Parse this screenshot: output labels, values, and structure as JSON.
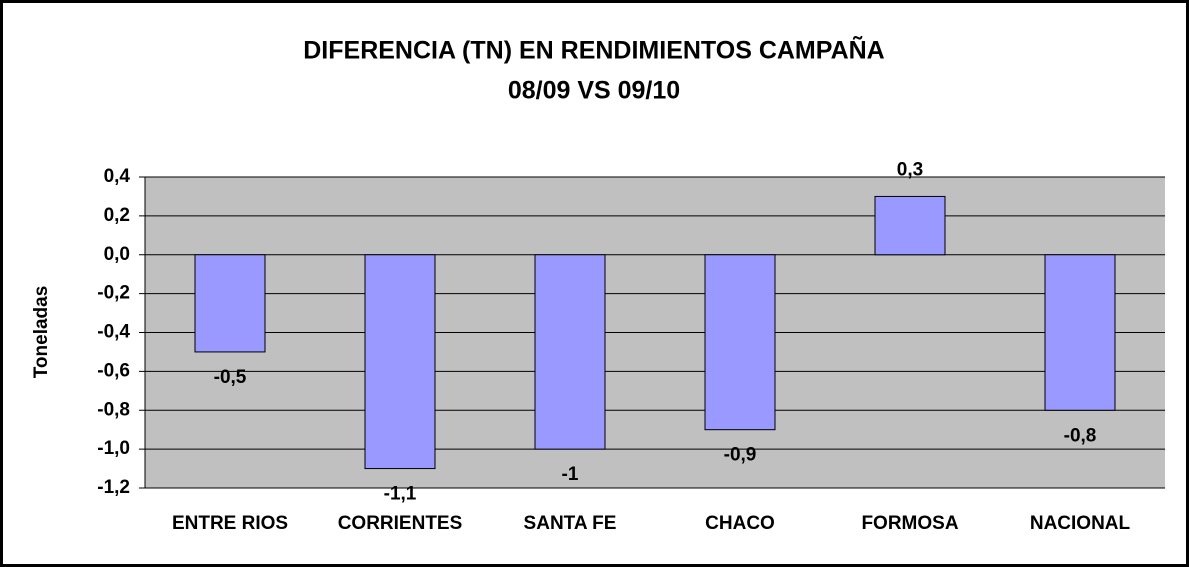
{
  "chart_data": {
    "type": "bar",
    "title": [
      "DIFERENCIA (TN) EN RENDIMIENTOS CAMPAÑA",
      "08/09 VS 09/10"
    ],
    "y_label": "Toneladas",
    "categories": [
      "ENTRE RIOS",
      "CORRIENTES",
      "SANTA FE",
      "CHACO",
      "FORMOSA",
      "NACIONAL"
    ],
    "values": [
      -0.5,
      -1.1,
      -1,
      -0.9,
      0.3,
      -0.8
    ],
    "value_labels": [
      "-0,5",
      "-1,1",
      "-1",
      "-0,9",
      "0,3",
      "-0,8"
    ],
    "color": "#9999ff",
    "ylim": [
      -1.2,
      0.4
    ],
    "yticks": [
      {
        "value": 0.4,
        "label": "0,4"
      },
      {
        "value": 0.2,
        "label": "0,2"
      },
      {
        "value": 0,
        "label": "0,0"
      },
      {
        "value": -0.2,
        "label": "-0,2"
      },
      {
        "value": -0.4,
        "label": "-0,4"
      },
      {
        "value": -0.6,
        "label": "-0,6"
      },
      {
        "value": -0.8,
        "label": "-0,8"
      },
      {
        "value": -1,
        "label": "-1,0"
      },
      {
        "value": -1.2,
        "label": "-1,2"
      }
    ],
    "grid": true
  }
}
